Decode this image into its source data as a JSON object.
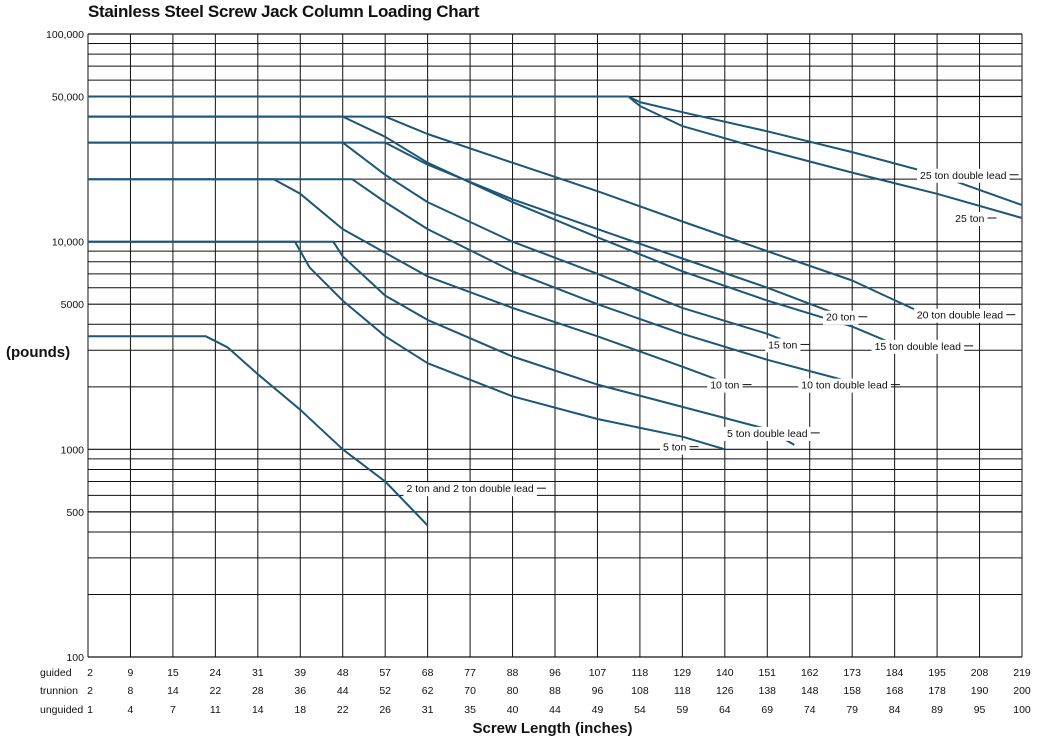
{
  "chart_data": {
    "type": "line",
    "title": "Stainless Steel Screw Jack Column Loading Chart",
    "xlabel": "Screw Length (inches)",
    "ylabel": "(pounds)",
    "y_scale": "log",
    "ylim": [
      100,
      100000
    ],
    "y_tick_labels": [
      "100,000",
      "50,000",
      "10,000",
      "5000",
      "1000",
      "500",
      "100"
    ],
    "y_tick_values": [
      100000,
      50000,
      10000,
      5000,
      1000,
      500,
      100
    ],
    "x_rows": [
      {
        "name": "guided",
        "values": [
          "2",
          "9",
          "15",
          "24",
          "31",
          "39",
          "48",
          "57",
          "68",
          "77",
          "88",
          "96",
          "107",
          "118",
          "129",
          "140",
          "151",
          "162",
          "173",
          "184",
          "195",
          "208",
          "219"
        ]
      },
      {
        "name": "trunnion",
        "values": [
          "2",
          "8",
          "14",
          "22",
          "28",
          "36",
          "44",
          "52",
          "62",
          "70",
          "80",
          "88",
          "96",
          "108",
          "118",
          "126",
          "138",
          "148",
          "158",
          "168",
          "178",
          "190",
          "200"
        ]
      },
      {
        "name": "unguided",
        "values": [
          "1",
          "4",
          "7",
          "11",
          "14",
          "18",
          "22",
          "26",
          "31",
          "35",
          "40",
          "44",
          "49",
          "54",
          "59",
          "64",
          "69",
          "74",
          "79",
          "84",
          "89",
          "95",
          "100"
        ]
      }
    ],
    "x_axis_basis": "guided",
    "grid": true,
    "series": [
      {
        "name": "2 ton and 2 ton double lead",
        "points": [
          [
            2,
            3500
          ],
          [
            22,
            3500
          ],
          [
            26,
            3100
          ],
          [
            31,
            2300
          ],
          [
            39,
            1550
          ],
          [
            48,
            1000
          ],
          [
            57,
            700
          ],
          [
            68,
            430
          ]
        ]
      },
      {
        "name": "5 ton",
        "points": [
          [
            2,
            10000
          ],
          [
            38,
            10000
          ],
          [
            41,
            7500
          ],
          [
            48,
            5200
          ],
          [
            57,
            3500
          ],
          [
            68,
            2600
          ],
          [
            88,
            1800
          ],
          [
            107,
            1400
          ],
          [
            129,
            1150
          ],
          [
            140,
            1000
          ]
        ]
      },
      {
        "name": "5 ton double lead",
        "points": [
          [
            2,
            10000
          ],
          [
            46,
            10000
          ],
          [
            48,
            8500
          ],
          [
            57,
            5500
          ],
          [
            68,
            4200
          ],
          [
            88,
            2800
          ],
          [
            107,
            2050
          ],
          [
            129,
            1600
          ],
          [
            151,
            1250
          ],
          [
            158,
            1050
          ]
        ]
      },
      {
        "name": "10 ton",
        "points": [
          [
            2,
            20000
          ],
          [
            34,
            20000
          ],
          [
            39,
            17000
          ],
          [
            48,
            11500
          ],
          [
            68,
            6800
          ],
          [
            88,
            4800
          ],
          [
            107,
            3500
          ],
          [
            129,
            2500
          ],
          [
            140,
            2100
          ]
        ]
      },
      {
        "name": "10 ton double lead",
        "points": [
          [
            2,
            20000
          ],
          [
            50,
            20000
          ],
          [
            57,
            15500
          ],
          [
            68,
            11500
          ],
          [
            88,
            7200
          ],
          [
            107,
            5000
          ],
          [
            129,
            3600
          ],
          [
            151,
            2700
          ],
          [
            173,
            2100
          ]
        ]
      },
      {
        "name": "15 ton",
        "points": [
          [
            2,
            30000
          ],
          [
            48,
            30000
          ],
          [
            57,
            21000
          ],
          [
            68,
            15500
          ],
          [
            88,
            10000
          ],
          [
            107,
            7000
          ],
          [
            129,
            4800
          ],
          [
            151,
            3600
          ],
          [
            158,
            3200
          ]
        ]
      },
      {
        "name": "15 ton double lead",
        "points": [
          [
            2,
            40000
          ],
          [
            48,
            40000
          ],
          [
            57,
            32000
          ],
          [
            68,
            24000
          ],
          [
            88,
            15500
          ],
          [
            107,
            10500
          ],
          [
            129,
            7200
          ],
          [
            151,
            5200
          ],
          [
            173,
            3900
          ],
          [
            184,
            3200
          ]
        ]
      },
      {
        "name": "20 ton",
        "points": [
          [
            2,
            30000
          ],
          [
            57,
            30000
          ],
          [
            68,
            23500
          ],
          [
            88,
            16000
          ],
          [
            107,
            11500
          ],
          [
            129,
            8300
          ],
          [
            151,
            6000
          ],
          [
            173,
            4200
          ]
        ]
      },
      {
        "name": "20 ton double lead",
        "points": [
          [
            2,
            40000
          ],
          [
            57,
            40000
          ],
          [
            68,
            33000
          ],
          [
            88,
            24000
          ],
          [
            107,
            17500
          ],
          [
            129,
            12500
          ],
          [
            151,
            9000
          ],
          [
            173,
            6500
          ],
          [
            195,
            4200
          ]
        ]
      },
      {
        "name": "25 ton",
        "points": [
          [
            2,
            50000
          ],
          [
            115,
            50000
          ],
          [
            118,
            45000
          ],
          [
            129,
            36000
          ],
          [
            151,
            27500
          ],
          [
            173,
            21500
          ],
          [
            195,
            17000
          ],
          [
            219,
            13000
          ]
        ]
      },
      {
        "name": "25 ton double lead",
        "points": [
          [
            2,
            50000
          ],
          [
            115,
            50000
          ],
          [
            118,
            47000
          ],
          [
            129,
            42000
          ],
          [
            151,
            34000
          ],
          [
            173,
            27000
          ],
          [
            195,
            21000
          ],
          [
            219,
            15000
          ]
        ]
      }
    ],
    "series_labels": [
      {
        "text": "2 ton and 2 ton double lead",
        "at": [
          77,
          650
        ]
      },
      {
        "text": "5 ton",
        "at": [
          127,
          1030
        ]
      },
      {
        "text": "5 ton double lead",
        "at": [
          151,
          1200
        ]
      },
      {
        "text": "10 ton",
        "at": [
          140,
          2050
        ]
      },
      {
        "text": "10 ton double lead",
        "at": [
          171,
          2050
        ]
      },
      {
        "text": "15 ton",
        "at": [
          155,
          3200
        ]
      },
      {
        "text": "15 ton double lead",
        "at": [
          190,
          3150
        ]
      },
      {
        "text": "20 ton",
        "at": [
          170,
          4350
        ]
      },
      {
        "text": "20 ton double lead",
        "at": [
          202,
          4450
        ]
      },
      {
        "text": "25 ton",
        "at": [
          205,
          13000
        ]
      },
      {
        "text": "25 ton double lead",
        "at": [
          203,
          21000
        ]
      }
    ],
    "line_color": "#1d5677",
    "grid_color": "#111111"
  }
}
